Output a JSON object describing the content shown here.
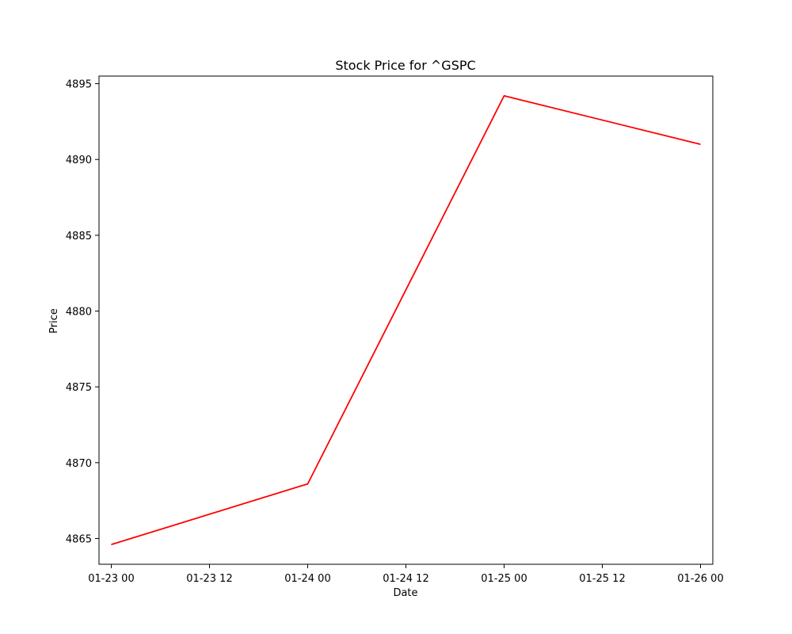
{
  "chart_data": {
    "type": "line",
    "title": "Stock Price for ^GSPC",
    "xlabel": "Date",
    "ylabel": "Price",
    "x": [
      "01-23 00",
      "01-24 00",
      "01-25 00",
      "01-26 00"
    ],
    "series": [
      {
        "values": [
          4864.6,
          4868.6,
          4894.2,
          4891.0
        ],
        "color": "#ff0000"
      }
    ],
    "x_tick_labels": [
      "01-23 00",
      "01-23 12",
      "01-24 00",
      "01-24 12",
      "01-25 00",
      "01-25 12",
      "01-26 00"
    ],
    "y_ticks": [
      4865,
      4870,
      4875,
      4880,
      4885,
      4890,
      4895
    ],
    "ylim": [
      4863.3,
      4895.5
    ],
    "xlim": [
      "01-22 22:30",
      "01-26 01:30"
    ],
    "grid": false,
    "legend": "none"
  }
}
